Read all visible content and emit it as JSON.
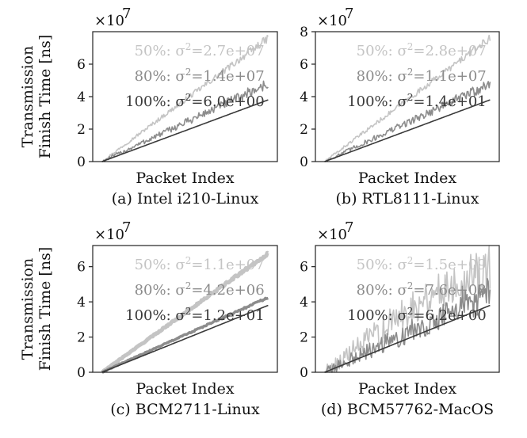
{
  "chart_data": [
    {
      "type": "line",
      "caption": "(a) Intel i210-Linux",
      "xlabel": "Packet Index",
      "ylabel_lines": [
        "Transmission",
        "Finish Time [ns]"
      ],
      "scale_label": "×10",
      "scale_exp": "7",
      "ylim": [
        0,
        8
      ],
      "yticks": [
        "0",
        "2",
        "4",
        "6"
      ],
      "series": [
        {
          "name": "50%",
          "variance_label": "σ",
          "variance_sup": "2",
          "variance_value": "=2.7e+07",
          "color": "#c4c4c4",
          "noise": 0.25,
          "values": [
            0.0,
            1.52,
            3.04,
            4.56,
            6.08,
            7.6
          ]
        },
        {
          "name": "80%",
          "variance_label": "σ",
          "variance_sup": "2",
          "variance_value": "=1.4e+07",
          "color": "#8c8c8c",
          "noise": 0.35,
          "values": [
            0.0,
            0.96,
            1.92,
            2.88,
            3.84,
            4.8
          ]
        },
        {
          "name": "100%",
          "variance_label": "σ",
          "variance_sup": "2",
          "variance_value": "=6.0e+00",
          "color": "#3a3a3a",
          "noise": 0.0,
          "values": [
            0.0,
            0.76,
            1.52,
            2.28,
            3.04,
            3.8
          ]
        }
      ]
    },
    {
      "type": "line",
      "caption": "(b) RTL8111-Linux",
      "xlabel": "Packet Index",
      "scale_label": "×10",
      "scale_exp": "7",
      "ylim": [
        0,
        8
      ],
      "yticks": [
        "0",
        "2",
        "4",
        "6",
        "8"
      ],
      "series": [
        {
          "name": "50%",
          "variance_label": "σ",
          "variance_sup": "2",
          "variance_value": "=2.8e+07",
          "color": "#c4c4c4",
          "noise": 0.25,
          "values": [
            0.0,
            1.52,
            3.04,
            4.56,
            6.08,
            7.6
          ]
        },
        {
          "name": "80%",
          "variance_label": "σ",
          "variance_sup": "2",
          "variance_value": "=1.1e+07",
          "color": "#8c8c8c",
          "noise": 0.35,
          "values": [
            0.0,
            0.96,
            1.92,
            2.88,
            3.84,
            4.8
          ]
        },
        {
          "name": "100%",
          "variance_label": "σ",
          "variance_sup": "2",
          "variance_value": "=1.4e+01",
          "color": "#3a3a3a",
          "noise": 0.0,
          "values": [
            0.0,
            0.76,
            1.52,
            2.28,
            3.04,
            3.8
          ]
        }
      ]
    },
    {
      "type": "line",
      "caption": "(c) BCM2711-Linux",
      "xlabel": "Packet Index",
      "ylabel_lines": [
        "Transmission",
        "Finish Time [ns]"
      ],
      "scale_label": "×10",
      "scale_exp": "7",
      "ylim": [
        0,
        7.2
      ],
      "yticks": [
        "0",
        "2",
        "4",
        "6"
      ],
      "series": [
        {
          "name": "50%",
          "variance_label": "σ",
          "variance_sup": "2",
          "variance_value": "=1.1e+07",
          "color": "#c4c4c4",
          "noise": 0.08,
          "values": [
            0.0,
            1.35,
            2.7,
            4.05,
            5.4,
            6.75
          ]
        },
        {
          "name": "80%",
          "variance_label": "σ",
          "variance_sup": "2",
          "variance_value": "=4.2e+06",
          "color": "#8c8c8c",
          "noise": 0.06,
          "values": [
            0.0,
            0.85,
            1.7,
            2.55,
            3.4,
            4.25
          ]
        },
        {
          "name": "100%",
          "variance_label": "σ",
          "variance_sup": "2",
          "variance_value": "=1.2e+01",
          "color": "#3a3a3a",
          "noise": 0.0,
          "values": [
            0.0,
            0.76,
            1.52,
            2.28,
            3.04,
            3.8
          ]
        }
      ]
    },
    {
      "type": "line",
      "caption": "(d) BCM57762-MacOS",
      "xlabel": "Packet Index",
      "scale_label": "×10",
      "scale_exp": "7",
      "ylim": [
        0,
        7.2
      ],
      "yticks": [
        "0",
        "2",
        "4",
        "6"
      ],
      "series": [
        {
          "name": "50%",
          "variance_label": "σ",
          "variance_sup": "2",
          "variance_value": "=1.5e+09",
          "color": "#c4c4c4",
          "noise": 1.6,
          "values": [
            0.0,
            1.4,
            2.8,
            4.2,
            5.2,
            6.0
          ]
        },
        {
          "name": "80%",
          "variance_label": "σ",
          "variance_sup": "2",
          "variance_value": "=7.6e+08",
          "color": "#8c8c8c",
          "noise": 1.0,
          "values": [
            0.0,
            0.9,
            1.8,
            2.7,
            3.6,
            4.5
          ]
        },
        {
          "name": "100%",
          "variance_label": "σ",
          "variance_sup": "2",
          "variance_value": "=6.2e+00",
          "color": "#3a3a3a",
          "noise": 0.0,
          "values": [
            0.0,
            0.76,
            1.52,
            2.28,
            3.04,
            3.8
          ]
        }
      ]
    }
  ]
}
